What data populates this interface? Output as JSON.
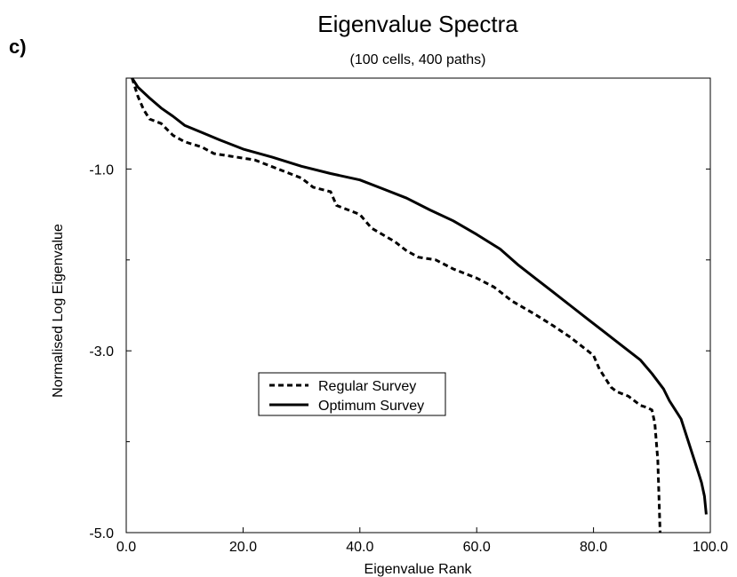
{
  "panel_label": "c)",
  "chart_data": {
    "type": "line",
    "title": "Eigenvalue Spectra",
    "subtitle": "(100 cells, 400 paths)",
    "xlabel": "Eigenvalue Rank",
    "ylabel": "Normalised Log Eigenvalue",
    "xlim": [
      0,
      100
    ],
    "ylim": [
      -5,
      0
    ],
    "x_ticks": [
      0,
      20,
      40,
      60,
      80,
      100
    ],
    "x_tick_labels": [
      "0.0",
      "20.0",
      "40.0",
      "60.0",
      "80.0",
      "100.0"
    ],
    "y_ticks": [
      -1,
      -3,
      -5
    ],
    "y_tick_labels": [
      "-1.0",
      "-3.0",
      "-5.0"
    ],
    "grid": false,
    "legend_position": "center-left",
    "series": [
      {
        "name": "Regular Survey",
        "style": "dashed",
        "x": [
          1,
          2,
          3,
          4,
          6,
          8,
          10,
          13,
          15,
          18,
          22,
          26,
          30,
          32,
          35,
          36,
          38,
          40,
          42,
          46,
          48,
          50,
          53,
          56,
          60,
          63,
          66,
          70,
          73,
          76,
          78,
          80,
          81,
          82,
          83,
          84,
          86,
          88,
          89,
          90,
          90.5,
          91,
          91.2,
          91.4
        ],
        "y": [
          0.0,
          -0.2,
          -0.35,
          -0.45,
          -0.5,
          -0.63,
          -0.7,
          -0.76,
          -0.83,
          -0.86,
          -0.9,
          -1.0,
          -1.1,
          -1.2,
          -1.25,
          -1.4,
          -1.45,
          -1.5,
          -1.65,
          -1.8,
          -1.9,
          -1.97,
          -2.0,
          -2.1,
          -2.2,
          -2.3,
          -2.45,
          -2.6,
          -2.72,
          -2.85,
          -2.95,
          -3.05,
          -3.2,
          -3.3,
          -3.4,
          -3.45,
          -3.5,
          -3.6,
          -3.62,
          -3.65,
          -3.8,
          -4.2,
          -4.6,
          -5.0
        ]
      },
      {
        "name": "Optimum Survey",
        "style": "solid",
        "x": [
          1,
          2,
          4,
          6,
          8,
          10,
          13,
          16,
          20,
          25,
          30,
          35,
          40,
          44,
          48,
          52,
          56,
          60,
          64,
          67,
          70,
          73,
          76,
          79,
          82,
          85,
          88,
          90,
          92,
          93,
          94,
          95,
          96,
          97,
          98,
          98.5,
          99,
          99.3
        ],
        "y": [
          0.0,
          -0.1,
          -0.22,
          -0.33,
          -0.42,
          -0.52,
          -0.6,
          -0.68,
          -0.78,
          -0.87,
          -0.97,
          -1.05,
          -1.12,
          -1.22,
          -1.32,
          -1.45,
          -1.57,
          -1.72,
          -1.88,
          -2.05,
          -2.2,
          -2.35,
          -2.5,
          -2.65,
          -2.8,
          -2.95,
          -3.1,
          -3.25,
          -3.42,
          -3.55,
          -3.65,
          -3.75,
          -3.95,
          -4.15,
          -4.35,
          -4.45,
          -4.6,
          -4.8
        ]
      }
    ]
  }
}
